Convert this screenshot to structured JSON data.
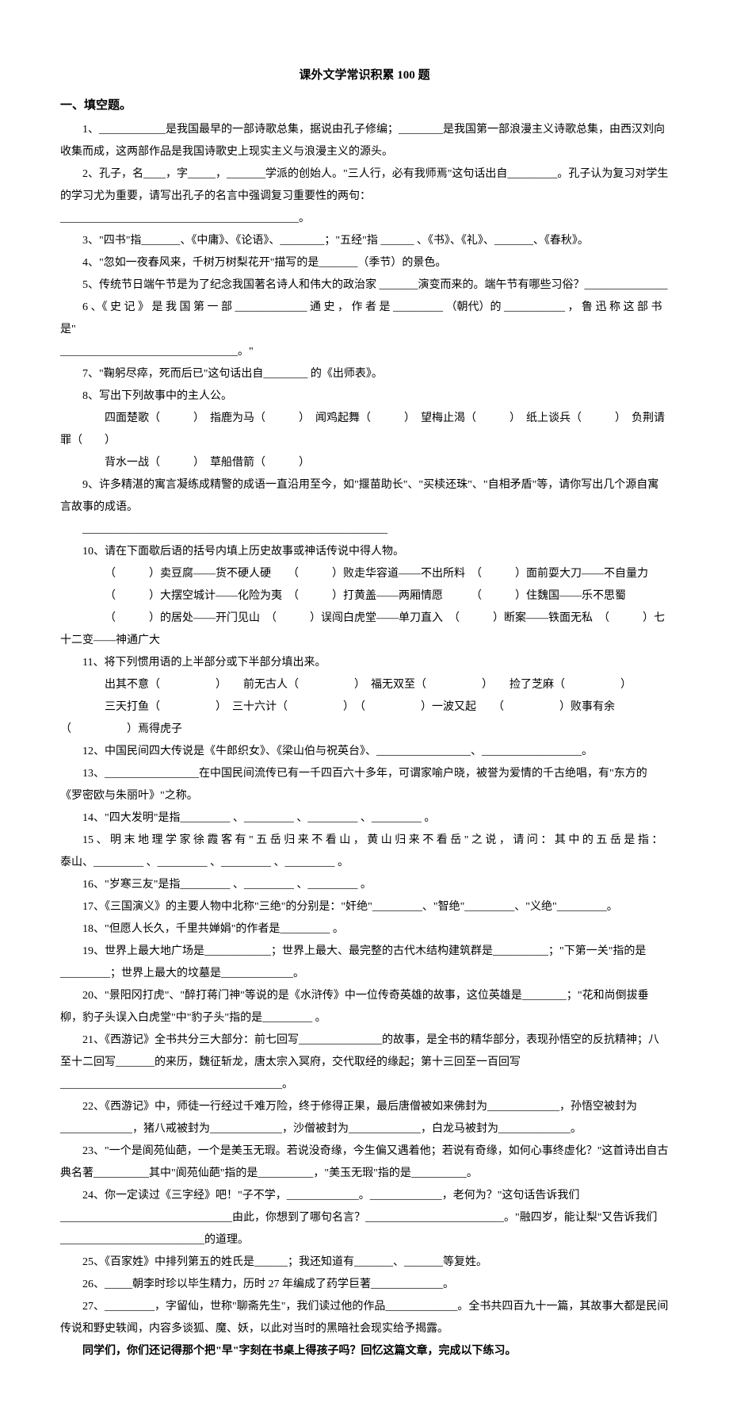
{
  "title": "课外文学常识积累 100 题",
  "section1_header": "一、填空题。",
  "q1": "1、____________是我国最早的一部诗歌总集，据说由孔子修编；________是我国第一部浪漫主义诗歌总集，由西汉刘向收集而成，这两部作品是我国诗歌史上现实主义与浪漫主义的源头。",
  "q2a": "2、孔子，名____，字_____，_______学派的创始人。\"三人行，必有我师焉\"这句话出自_________。孔子认为复习对学生的学习尤为重要，请写出孔子的名言中强调复习重要性的两句：",
  "q2b": "___________________________________________。",
  "q3": "3、\"四书\"指_______、《中庸》、《论语》、________；\"五经\"指 ______ 、《书》、《礼》、_______、《春秋》。",
  "q4": "4、\"忽如一夜春风来，千树万树梨花开\"描写的是_______（季节）的景色。",
  "q5": "5、传统节日端午节是为了纪念我国著名诗人和伟大的政治家 _______演变而来的。端午节有哪些习俗？_______________",
  "q6a": "6 、《 史 记 》 是 我 国 第 一 部 _____________ 通 史 ， 作 者 是 _________ （朝代）的 ___________ ， 鲁 迅 称 这 部 书 是\"",
  "q6b": "________________________________。\"",
  "q7": "7、\"鞠躬尽瘁，死而后已\"这句话出自________ 的《出师表》。",
  "q8": "8、写出下列故事中的主人公。",
  "q8a": "四面楚歌（　　　）　指鹿为马（　　　）　闻鸡起舞（　　　）　望梅止渴（　　　）　纸上谈兵（　　　）　负荆请罪（　　）",
  "q8b": "背水一战（　　　）　草船借箭（　　　）",
  "q9a": "9、许多精湛的寓言凝练成精警的成语一直沿用至今，如\"揠苗助长\"、\"买椟还珠\"、\"自相矛盾\"等，请你写出几个源自寓言故事的成语。",
  "q9b": "　　_______________________________________________________",
  "q10": "10、请在下面歇后语的括号内填上历史故事或神话传说中得人物。",
  "q10a": "（　　　）卖豆腐——货不硬人硬　　（　　　）败走华容道——不出所料　（　　　）面前耍大刀——不自量力",
  "q10b": "（　　　）大摆空城计——化险为夷　（　　　）打黄盖——两厢情愿　　　（　　　）住魏国——乐不思蜀",
  "q10c": "（　　　）的居处——开门见山　（　　　）误闯白虎堂——单刀直入　（　　　）断案——铁面无私　（　　　）七十二变——神通广大",
  "q11": "11、将下列惯用语的上半部分或下半部分填出来。",
  "q11a": "出其不意（　　　　　）　　前无古人（　　　　　）　福无双至（　　　　　）　　捡了芝麻（　　　　　）",
  "q11b": "三天打鱼（　　　　　）　三十六计（　　　　　）　（　　　　　）一波又起　　（　　　　　）败事有余　（　　　　　）焉得虎子",
  "q12": "12、中国民间四大传说是《牛郎织女》、《梁山伯与祝英台》、_________________、__________________。",
  "q13": "13、_________________在中国民间流传已有一千四百六十多年，可谓家喻户晓，被誉为爱情的千古绝唱，有\"东方的《罗密欧与朱丽叶》\"之称。",
  "q14": "14、\"四大发明\"是指_________ 、_________ 、_________ 、_________ 。",
  "q15": "15 、 明 末 地 理 学 家 徐 霞 客 有 \" 五 岳 归 来 不 看 山 ， 黄 山 归 来 不 看 岳 \" 之 说 ， 请 问 ： 其 中 的 五 岳 是 指 ： 泰山、_________ 、_________ 、_________ 、_________ 。",
  "q16": "16、\"岁寒三友\"是指_________ 、_________ 、_________ 。",
  "q17": "17、《三国演义》的主要人物中北称\"三绝\"的分别是：\"奸绝\"_________、\"智绝\"_________、\"义绝\"_________。",
  "q18": "18、\"但愿人长久，千里共婵娟\"的作者是_________ 。",
  "q19": "19、世界上最大地广场是____________；世界上最大、最完整的古代木结构建筑群是__________；\"下第一关\"指的是_________；世界上最大的坟墓是_____________。",
  "q20": "20、\"景阳冈打虎\"、\"醉打蒋门神\"等说的是《水浒传》中一位传奇英雄的故事，这位英雄是________；\"花和尚倒拔垂柳，豹子头误入白虎堂\"中\"豹子头\"指的是_________ 。",
  "q21": "21、《西游记》全书共分三大部分：前七回写_______________的故事，是全书的精华部分，表现孙悟空的反抗精神；八至十二回写_______的来历，魏征斩龙，唐太宗入冥府，交代取经的缘起；第十三回至一百回写________________________________________。",
  "q22": "22、《西游记》中，师徒一行经过千难万险，终于修得正果，最后唐僧被如来佛封为_____________，孙悟空被封为_____________，猪八戒被封为_____________，沙僧被封为_____________，白龙马被封为_____________。",
  "q23": "23、\"一个是阆苑仙葩，一个是美玉无瑕。若说没奇缘，今生偏又遇着他；若说有奇缘，如何心事终虚化？\"这首诗出自古典名著__________其中\"阆苑仙葩\"指的是__________，\"美玉无瑕\"指的是__________。",
  "q24": "24、你一定读过《三字经》吧！\"子不学，_____________。_____________，老何为？\"这句话告诉我们_______________________________由此，你想到了哪句名言？_________________________。\"融四岁，能让梨\"又告诉我们__________________________的道理。",
  "q25": "25、《百家姓》中排列第五的姓氏是______；我还知道有_______、_______等复姓。",
  "q26": "26、_____朝李时珍以毕生精力，历时 27 年编成了药学巨著_____________。",
  "q27": "27、_________，字留仙，世称\"聊斋先生\"，我们读过他的作品_____________。全书共四百九十一篇，其故事大都是民间传说和野史轶闻，内容多谈狐、魔、妖，以此对当时的黑暗社会现实给予揭露。",
  "note": "同学们，你们还记得那个把\"早\"字刻在书桌上得孩子吗？回忆这篇文章，完成以下练习。"
}
